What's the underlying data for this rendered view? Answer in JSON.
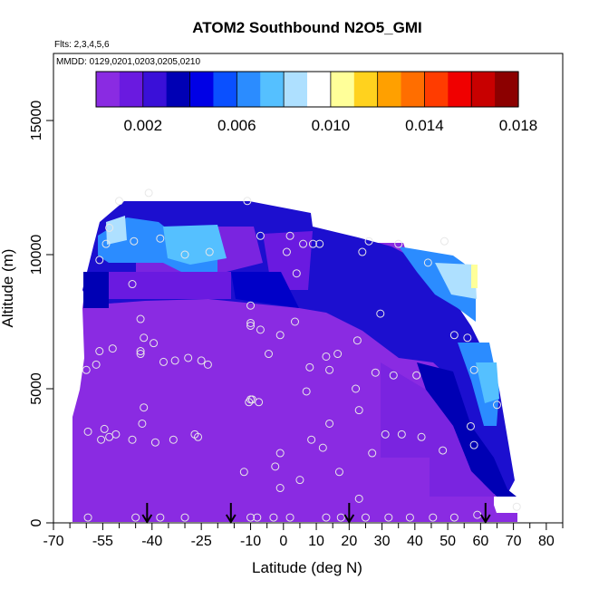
{
  "chart_data": {
    "type": "heatmap",
    "title": "ATOM2 Southbound N2O5_GMI",
    "subtitle_flights": "Flts: 2,3,4,5,6",
    "subtitle_dates": "MMDD: 0129,0201,0203,0205,0210",
    "xlabel": "Latitude (deg N)",
    "ylabel": "Altitude (m)",
    "xlim": [
      -70,
      85
    ],
    "ylim": [
      0,
      17500
    ],
    "x_ticks": [
      -70,
      -55,
      -40,
      -25,
      -10,
      0,
      10,
      20,
      30,
      40,
      50,
      60,
      70,
      80
    ],
    "x_tick_labels": [
      "-70",
      "-55",
      "-40",
      "-25",
      "-10",
      "0",
      "10",
      "20",
      "30",
      "40",
      "50",
      "60",
      "70",
      "80"
    ],
    "x_minor_ticks": [
      -65,
      -60,
      -50,
      -45,
      -35,
      -30,
      -20,
      -15,
      -5,
      5,
      15,
      25,
      35,
      45,
      55,
      65,
      75,
      85
    ],
    "y_ticks": [
      0,
      5000,
      10000,
      15000
    ],
    "y_tick_labels": [
      "0",
      "5000",
      "10000",
      "15000"
    ],
    "colorbar": {
      "range": [
        0,
        0.018
      ],
      "ticks": [
        0.002,
        0.006,
        0.01,
        0.014,
        0.018
      ],
      "tick_labels": [
        "0.002",
        "0.006",
        "0.010",
        "0.014",
        "0.018"
      ],
      "colors": [
        "#8a2be2",
        "#6a1ae0",
        "#3a10d8",
        "#0000b4",
        "#0000e6",
        "#0a50ff",
        "#2b8cff",
        "#55c0ff",
        "#aee0ff",
        "#ffffff",
        "#ffff99",
        "#ffd21e",
        "#ffa000",
        "#ff6e00",
        "#ff3c00",
        "#f00000",
        "#c80000",
        "#8c0000"
      ]
    },
    "arrow_latitudes": [
      -41.5,
      -16,
      20,
      61.5
    ],
    "points": [
      [
        -41,
        12300
      ],
      [
        -50,
        12000
      ],
      [
        -53,
        11000
      ],
      [
        -54,
        10400
      ],
      [
        -56,
        9800
      ],
      [
        -37.5,
        10600
      ],
      [
        -45.5,
        10500
      ],
      [
        -30,
        10000
      ],
      [
        -22.5,
        10100
      ],
      [
        -11,
        12000
      ],
      [
        -7,
        10700
      ],
      [
        2,
        10700
      ],
      [
        6,
        10400
      ],
      [
        9,
        10400
      ],
      [
        11,
        10400
      ],
      [
        1,
        10100
      ],
      [
        26,
        10500
      ],
      [
        35,
        10400
      ],
      [
        49,
        10500
      ],
      [
        24,
        10100
      ],
      [
        44,
        9700
      ],
      [
        4,
        9300
      ],
      [
        -46,
        8900
      ],
      [
        -43.5,
        7600
      ],
      [
        -10,
        8100
      ],
      [
        -10,
        7450
      ],
      [
        -10,
        7350
      ],
      [
        -7,
        7200
      ],
      [
        3.5,
        7500
      ],
      [
        -1,
        7000
      ],
      [
        29.5,
        7800
      ],
      [
        22.5,
        6800
      ],
      [
        -42.5,
        6900
      ],
      [
        -39.5,
        6700
      ],
      [
        -56,
        6400
      ],
      [
        -52,
        6500
      ],
      [
        -43.5,
        6300
      ],
      [
        -43.5,
        6400
      ],
      [
        -36.5,
        6000
      ],
      [
        -33,
        6050
      ],
      [
        -29,
        6150
      ],
      [
        -25,
        6050
      ],
      [
        -23,
        5900
      ],
      [
        -4.5,
        6300
      ],
      [
        13,
        6200
      ],
      [
        16.5,
        6300
      ],
      [
        8,
        5800
      ],
      [
        14,
        5700
      ],
      [
        28,
        5600
      ],
      [
        33.5,
        5500
      ],
      [
        40.5,
        5500
      ],
      [
        -57,
        5900
      ],
      [
        -60,
        5700
      ],
      [
        -42.5,
        4300
      ],
      [
        7,
        4900
      ],
      [
        22,
        5000
      ],
      [
        -10,
        4600
      ],
      [
        -9.5,
        4600
      ],
      [
        -10.5,
        4500
      ],
      [
        -7.5,
        4500
      ],
      [
        -43,
        3700
      ],
      [
        -54.5,
        3500
      ],
      [
        -55.5,
        3100
      ],
      [
        -53,
        3200
      ],
      [
        -51,
        3300
      ],
      [
        -46,
        3100
      ],
      [
        -39,
        3000
      ],
      [
        -33.5,
        3100
      ],
      [
        -27,
        3300
      ],
      [
        -26,
        3200
      ],
      [
        -59.5,
        3400
      ],
      [
        14,
        3700
      ],
      [
        23,
        4200
      ],
      [
        31,
        3300
      ],
      [
        36,
        3300
      ],
      [
        42,
        3200
      ],
      [
        48.5,
        2700
      ],
      [
        8.5,
        3100
      ],
      [
        12,
        2800
      ],
      [
        27,
        2600
      ],
      [
        -1,
        2600
      ],
      [
        -2.5,
        2100
      ],
      [
        5,
        1600
      ],
      [
        -1,
        1300
      ],
      [
        17,
        1900
      ],
      [
        23,
        900
      ],
      [
        -12,
        1900
      ],
      [
        -37.5,
        200
      ],
      [
        -30,
        200
      ],
      [
        -10,
        200
      ],
      [
        -8,
        200
      ],
      [
        -3,
        200
      ],
      [
        2,
        200
      ],
      [
        13,
        200
      ],
      [
        17.5,
        200
      ],
      [
        25,
        200
      ],
      [
        32,
        200
      ],
      [
        38.5,
        200
      ],
      [
        45.5,
        200
      ],
      [
        52,
        200
      ],
      [
        59,
        300
      ],
      [
        -59.5,
        200
      ],
      [
        -45,
        200
      ],
      [
        57,
        3600
      ],
      [
        58,
        2900
      ],
      [
        56,
        6900
      ],
      [
        58,
        5700
      ],
      [
        65,
        4400
      ],
      [
        52,
        7000
      ],
      [
        71,
        600
      ]
    ]
  }
}
